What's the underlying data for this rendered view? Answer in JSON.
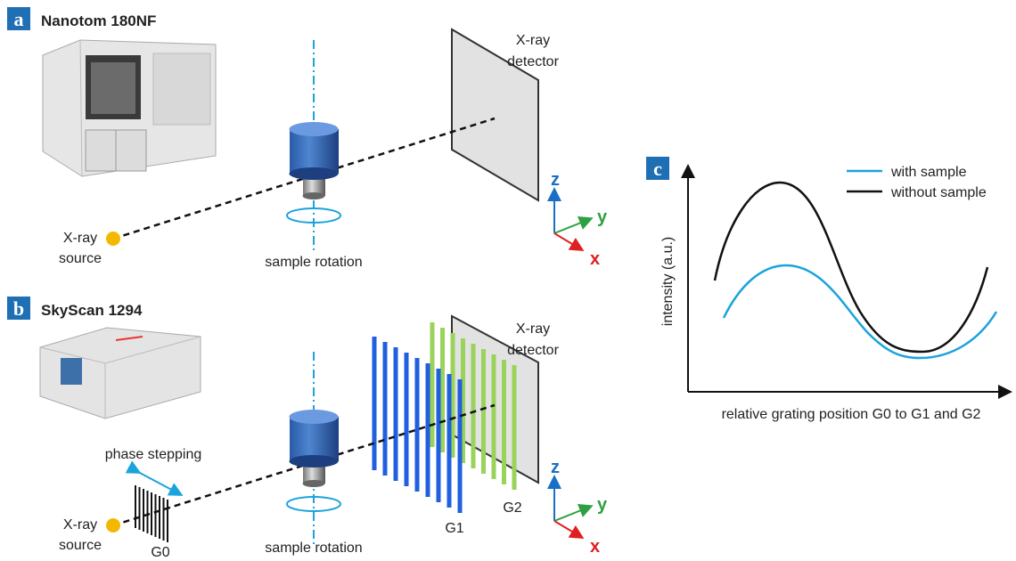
{
  "panels": [
    {
      "label": "a",
      "title": "Nanotom 180NF",
      "detector": [
        "X-ray",
        "detector"
      ],
      "source": [
        "X-ray",
        "source"
      ],
      "rotation": "sample rotation",
      "axes": [
        "z",
        "y",
        "x"
      ]
    },
    {
      "label": "b",
      "title": "SkyScan 1294",
      "detector": [
        "X-ray",
        "detector"
      ],
      "source": [
        "X-ray",
        "source"
      ],
      "rotation": "sample rotation",
      "axes": [
        "z",
        "y",
        "x"
      ],
      "stepping": "phase stepping",
      "gratings": [
        "G0",
        "G1",
        "G2"
      ]
    },
    {
      "label": "c",
      "legend": [
        "with sample",
        "without sample"
      ],
      "y_label": "intensity (a.u.)",
      "x_label": "relative grating position G0 to G1 and G2"
    }
  ]
}
